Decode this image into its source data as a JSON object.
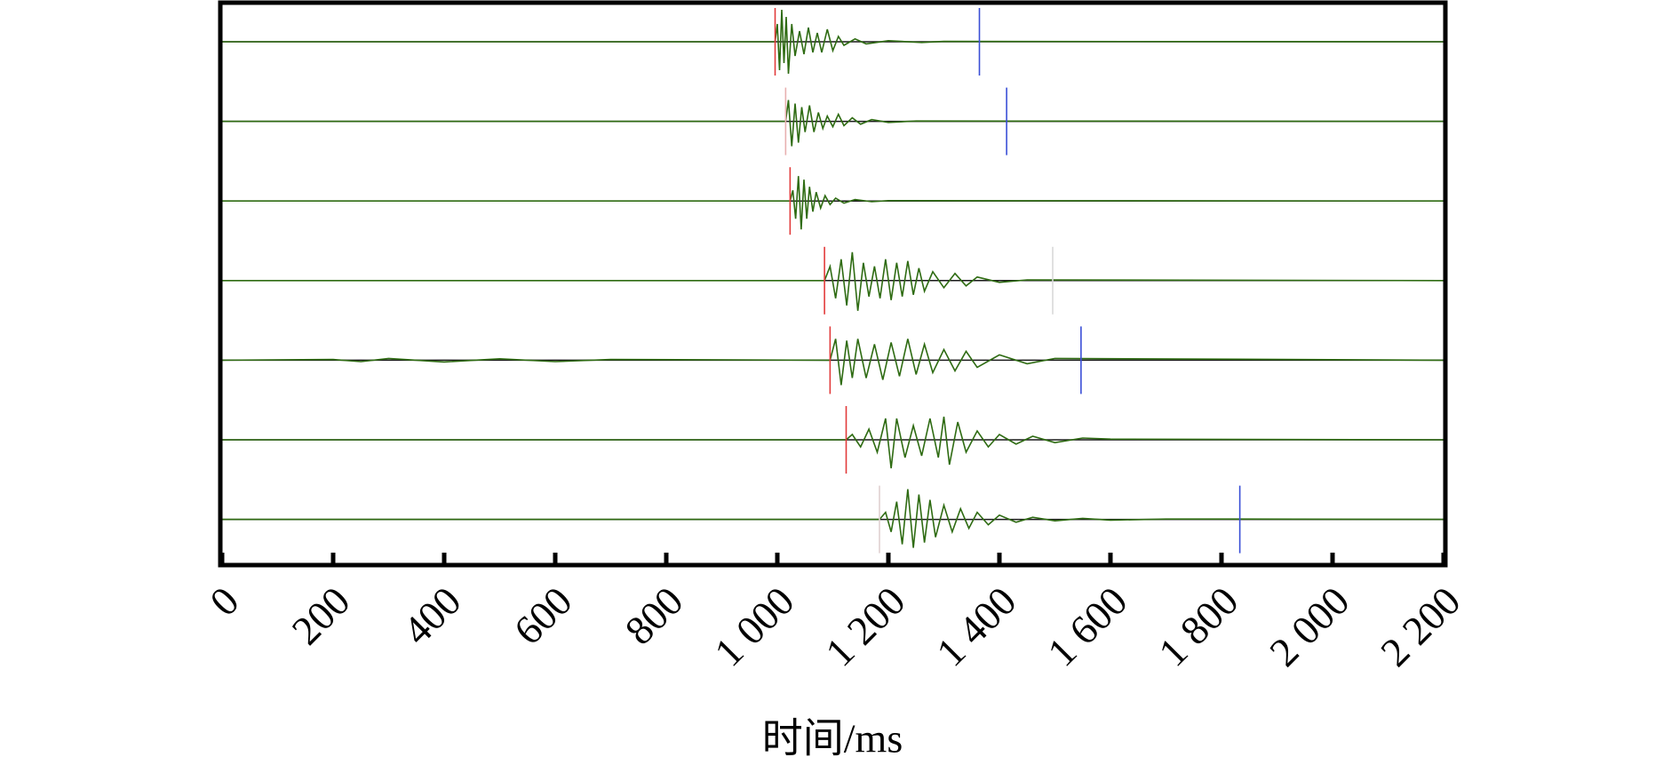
{
  "chart_data": {
    "type": "line",
    "x_label": "时间/ms",
    "xlim": [
      0,
      2200
    ],
    "xticks": [
      0,
      200,
      400,
      600,
      800,
      {
        "value": 1000,
        "label": "1 000"
      },
      {
        "value": 1200,
        "label": "1 200"
      },
      {
        "value": 1400,
        "label": "1 400"
      },
      {
        "value": 1600,
        "label": "1 600"
      },
      {
        "value": 1800,
        "label": "1 800"
      },
      {
        "value": 2000,
        "label": "2 000"
      },
      {
        "value": 2200,
        "label": "2 200"
      }
    ],
    "ylim": [
      -1,
      1
    ],
    "series": [
      {
        "color": "#2e6b12",
        "onset": 996,
        "onset_color": "#e23b3b",
        "end": 1364,
        "end_color": "#3a4fd6",
        "x": [
          0,
          996,
          1000,
          1004,
          1008,
          1012,
          1016,
          1020,
          1026,
          1032,
          1040,
          1048,
          1056,
          1064,
          1072,
          1080,
          1090,
          1100,
          1110,
          1120,
          1140,
          1160,
          1200,
          1260,
          1300,
          2200
        ],
        "values": [
          0,
          0,
          0.5,
          -0.8,
          0.9,
          -0.6,
          0.7,
          -0.9,
          0.5,
          -0.4,
          0.3,
          -0.35,
          0.4,
          -0.3,
          0.25,
          -0.3,
          0.35,
          -0.25,
          0.15,
          -0.1,
          0.08,
          -0.06,
          0.03,
          -0.02,
          0.01,
          0
        ]
      },
      {
        "color": "#2e6b12",
        "onset": 1015,
        "onset_color": "#e8b0b0",
        "end": 1413,
        "end_color": "#3a4fd6",
        "x": [
          0,
          1015,
          1020,
          1026,
          1032,
          1038,
          1044,
          1050,
          1058,
          1066,
          1074,
          1082,
          1090,
          1100,
          1110,
          1120,
          1135,
          1150,
          1170,
          1200,
          1250,
          2200
        ],
        "values": [
          0,
          0,
          0.6,
          -0.7,
          0.5,
          -0.6,
          0.4,
          -0.3,
          0.45,
          -0.3,
          0.25,
          -0.2,
          0.15,
          -0.15,
          0.2,
          -0.12,
          0.1,
          -0.08,
          0.05,
          -0.03,
          0.01,
          0
        ]
      },
      {
        "color": "#2e6b12",
        "onset": 1023,
        "onset_color": "#e23b3b",
        "x": [
          0,
          1023,
          1028,
          1033,
          1038,
          1043,
          1048,
          1053,
          1058,
          1064,
          1070,
          1078,
          1086,
          1095,
          1105,
          1120,
          1140,
          1170,
          1200,
          2200
        ],
        "values": [
          0,
          0,
          0.3,
          -0.5,
          0.7,
          -0.8,
          0.6,
          -0.5,
          0.4,
          -0.3,
          0.25,
          -0.2,
          0.15,
          -0.1,
          0.08,
          -0.06,
          0.04,
          -0.02,
          0.01,
          0
        ]
      },
      {
        "color": "#2e6b12",
        "onset": 1085,
        "onset_color": "#e23b3b",
        "end": 1496,
        "end_color": "#d8d8d8",
        "x": [
          0,
          1085,
          1095,
          1105,
          1115,
          1125,
          1135,
          1145,
          1155,
          1165,
          1175,
          1185,
          1195,
          1205,
          1215,
          1225,
          1235,
          1245,
          1255,
          1265,
          1280,
          1300,
          1320,
          1340,
          1360,
          1400,
          1450,
          2200
        ],
        "values": [
          0,
          0,
          0.4,
          -0.5,
          0.6,
          -0.7,
          0.8,
          -0.85,
          0.5,
          -0.45,
          0.4,
          -0.5,
          0.6,
          -0.55,
          0.5,
          -0.45,
          0.55,
          -0.4,
          0.35,
          -0.3,
          0.25,
          -0.2,
          0.2,
          -0.15,
          0.1,
          -0.05,
          0.02,
          0
        ]
      },
      {
        "color": "#2e6b12",
        "onset": 1095,
        "onset_color": "#e23b3b",
        "end": 1547,
        "end_color": "#3a4fd6",
        "x": [
          0,
          200,
          250,
          300,
          400,
          500,
          600,
          700,
          1095,
          1105,
          1115,
          1125,
          1135,
          1145,
          1160,
          1175,
          1190,
          1205,
          1220,
          1235,
          1250,
          1265,
          1280,
          1300,
          1320,
          1340,
          1360,
          1400,
          1450,
          1500,
          2200
        ],
        "values": [
          0,
          0.02,
          -0.04,
          0.05,
          -0.05,
          0.04,
          -0.04,
          0.02,
          0,
          0.6,
          -0.7,
          0.55,
          -0.5,
          0.6,
          -0.5,
          0.45,
          -0.55,
          0.5,
          -0.45,
          0.6,
          -0.4,
          0.45,
          -0.35,
          0.3,
          -0.3,
          0.25,
          -0.2,
          0.15,
          -0.1,
          0.05,
          0
        ]
      },
      {
        "color": "#2e6b12",
        "onset": 1124,
        "onset_color": "#e23b3b",
        "x": [
          0,
          1124,
          1135,
          1150,
          1165,
          1180,
          1195,
          1205,
          1215,
          1230,
          1245,
          1260,
          1275,
          1290,
          1300,
          1310,
          1325,
          1340,
          1360,
          1380,
          1400,
          1430,
          1460,
          1500,
          1550,
          1600,
          2200
        ],
        "values": [
          0,
          0,
          0.15,
          -0.2,
          0.3,
          -0.35,
          0.6,
          -0.8,
          0.6,
          -0.5,
          0.4,
          -0.45,
          0.6,
          -0.5,
          0.65,
          -0.7,
          0.5,
          -0.35,
          0.25,
          -0.2,
          0.15,
          -0.12,
          0.1,
          -0.08,
          0.05,
          0.02,
          0
        ]
      },
      {
        "color": "#2e6b12",
        "onset": 1184,
        "onset_color": "#e0d0d0",
        "end": 1833,
        "end_color": "#3a4fd6",
        "x": [
          0,
          1184,
          1195,
          1205,
          1215,
          1225,
          1235,
          1245,
          1255,
          1265,
          1275,
          1285,
          1300,
          1315,
          1330,
          1345,
          1360,
          1380,
          1400,
          1430,
          1460,
          1500,
          1550,
          1600,
          1700,
          1800,
          2200
        ],
        "values": [
          0,
          0,
          0.2,
          -0.35,
          0.5,
          -0.7,
          0.85,
          -0.8,
          0.7,
          -0.65,
          0.55,
          -0.5,
          0.4,
          -0.35,
          0.3,
          -0.25,
          0.2,
          -0.15,
          0.12,
          -0.08,
          0.06,
          -0.04,
          0.03,
          -0.02,
          0.01,
          0.01,
          0
        ]
      }
    ]
  }
}
